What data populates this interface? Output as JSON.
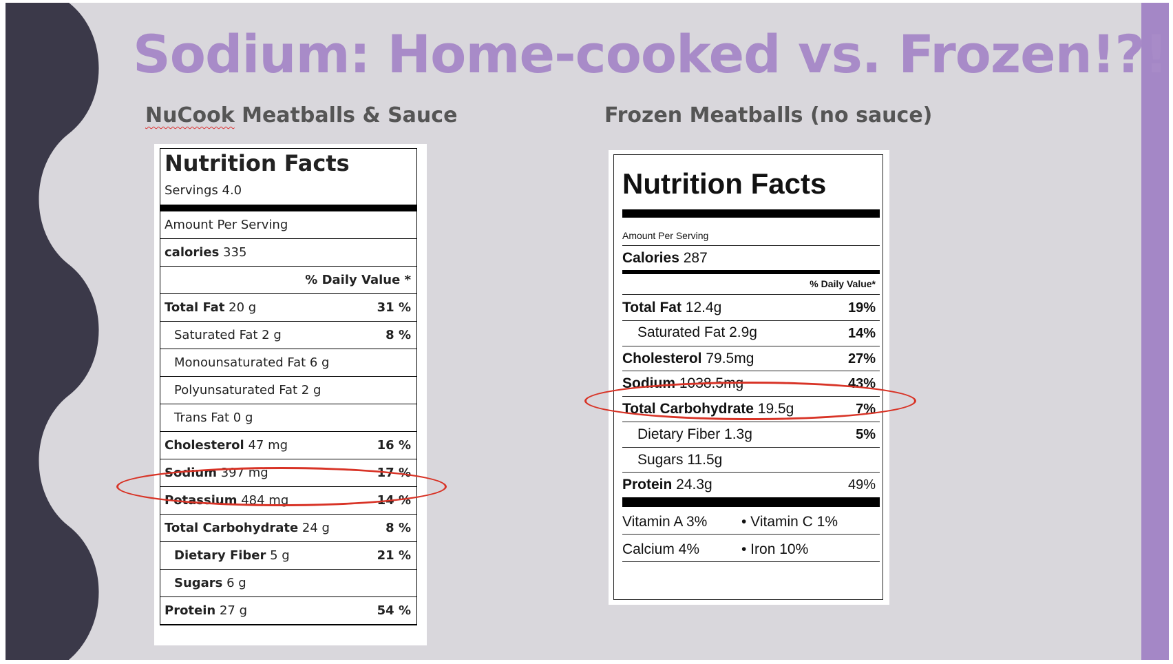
{
  "slide": {
    "title": "Sodium: Home-cooked vs. Frozen!?!?",
    "left_heading_brand": "NuCook",
    "left_heading_rest": " Meatballs & Sauce",
    "right_heading": "Frozen Meatballs (no sauce)",
    "colors": {
      "title": "#a88bc8",
      "band_dark": "#3b3949",
      "band_light": "#a487c6",
      "highlight": "#d83326"
    }
  },
  "label_nucook": {
    "title": "Nutrition Facts",
    "servings": "Servings 4.0",
    "amount_per_serving": "Amount Per Serving",
    "calories_label": "calories",
    "calories_value": " 335",
    "daily_value_header": "% Daily Value *",
    "rows": [
      {
        "label": "Total Fat",
        "amount": " 20 g",
        "dv": "31 %"
      },
      {
        "label": "Saturated Fat 2 g",
        "amount": "",
        "dv": "8 %"
      },
      {
        "label": "Monounsaturated Fat 6 g",
        "amount": "",
        "dv": ""
      },
      {
        "label": "Polyunsaturated Fat 2 g",
        "amount": "",
        "dv": ""
      },
      {
        "label": "Trans Fat 0 g",
        "amount": "",
        "dv": ""
      },
      {
        "label": "Cholesterol",
        "amount": " 47 mg",
        "dv": "16 %"
      },
      {
        "label": "Sodium",
        "amount": " 397 mg",
        "dv": "17 %"
      },
      {
        "label": "Potassium",
        "amount": " 484 mg",
        "dv": "14 %"
      },
      {
        "label": "Total Carbohydrate",
        "amount": " 24 g",
        "dv": "8 %"
      },
      {
        "label": "Dietary Fiber",
        "amount": " 5 g",
        "dv": "21 %"
      },
      {
        "label": "Sugars",
        "amount": " 6 g",
        "dv": ""
      },
      {
        "label": "Protein",
        "amount": " 27 g",
        "dv": "54 %"
      }
    ]
  },
  "label_frozen": {
    "title": "Nutrition Facts",
    "amount_per_serving": "Amount Per Serving",
    "calories_label": "Calories",
    "calories_value": " 287",
    "daily_value_header": "% Daily Value*",
    "rows": [
      {
        "label": "Total Fat",
        "amount": " 12.4g",
        "dv": "19%"
      },
      {
        "label": "Saturated Fat 2.9g",
        "amount": "",
        "dv": "14%"
      },
      {
        "label": "Cholesterol",
        "amount": " 79.5mg",
        "dv": "27%"
      },
      {
        "label": "Sodium",
        "amount": " 1038.5mg",
        "dv": "43%"
      },
      {
        "label": "Total Carbohydrate",
        "amount": " 19.5g",
        "dv": "7%"
      },
      {
        "label": "Dietary Fiber 1.3g",
        "amount": "",
        "dv": "5%"
      },
      {
        "label": "Sugars 11.5g",
        "amount": "",
        "dv": ""
      },
      {
        "label": "Protein",
        "amount": " 24.3g",
        "dv": "49%"
      }
    ],
    "vitamin_a": "Vitamin A 3%",
    "vitamin_c": "•  Vitamin C 1%",
    "calcium": "Calcium 4%",
    "iron": "•  Iron 10%"
  }
}
